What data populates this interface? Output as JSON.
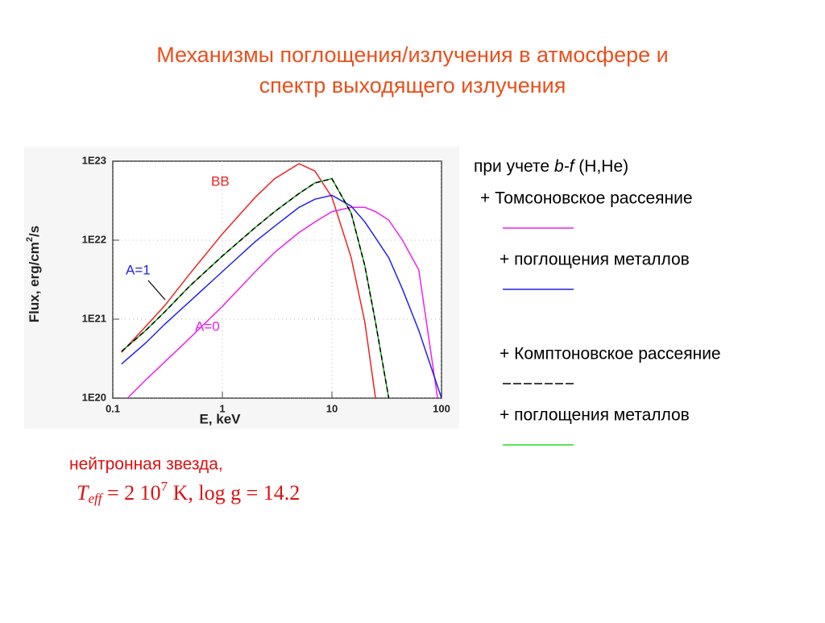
{
  "slide_title": [
    "Механизмы поглощения/излучения в атмосфере и",
    "спектр выходящего излучения"
  ],
  "chart_data": {
    "type": "line",
    "xlabel": "E, keV",
    "ylabel": {
      "main": "Flux, erg/cm",
      "sup": "2",
      "end": "/s"
    },
    "xlim": [
      0.1,
      100
    ],
    "ylim": [
      1e+20,
      1e+23
    ],
    "xticks": [
      0.1,
      1,
      10,
      100
    ],
    "yticks": [
      {
        "value": 1e+20,
        "label": "1E20"
      },
      {
        "value": 1e+21,
        "label": "1E21"
      },
      {
        "value": 1e+22,
        "label": "1E22"
      },
      {
        "value": 1e+23,
        "label": "1E23"
      }
    ],
    "xscale": "log",
    "yscale": "log",
    "grid": true,
    "series": [
      {
        "name": "BB",
        "color": "#ee2222",
        "x": [
          0.12,
          0.2,
          0.3,
          0.5,
          1,
          2,
          3,
          5,
          7,
          10,
          15,
          20,
          25
        ],
        "values": [
          3.8e+20,
          8.1e+20,
          1.5e+21,
          3.7e+21,
          1.2e+22,
          3.5e+22,
          6e+22,
          9.3e+22,
          7.5e+22,
          3.5e+22,
          6e+21,
          9.1e+20,
          1e+20
        ]
      },
      {
        "name": "A=0",
        "color": "#ee22ee",
        "x": [
          0.136,
          0.2,
          0.3,
          0.5,
          1,
          2,
          3,
          5,
          7,
          10,
          15,
          20,
          25,
          33,
          44,
          62,
          92
        ],
        "values": [
          1e+20,
          1.7e+20,
          2.9e+20,
          5.7e+20,
          1.45e+21,
          4e+21,
          7e+21,
          1.25e+22,
          1.7e+22,
          2.3e+22,
          2.6e+22,
          2.6e+22,
          2.3e+22,
          1.8e+22,
          1e+22,
          4.2e+21,
          1e+20
        ]
      },
      {
        "name": "A=1",
        "color": "#2222ee",
        "x": [
          0.12,
          0.2,
          0.3,
          0.5,
          1,
          2,
          3,
          5,
          7,
          10,
          15,
          20,
          25,
          33,
          44,
          62,
          100
        ],
        "values": [
          2.7e+20,
          5e+20,
          8.7e+20,
          1.66e+21,
          4e+21,
          9.6e+21,
          1.5e+22,
          2.6e+22,
          3.3e+22,
          3.7e+22,
          2.7e+22,
          1.7e+22,
          1.07e+22,
          6e+21,
          2.4e+21,
          7.2e+20,
          1e+20
        ]
      },
      {
        "color": "#11aa11",
        "dash_color": "#000000",
        "x": [
          0.12,
          0.2,
          0.3,
          0.5,
          1,
          2,
          3,
          5,
          7,
          10,
          15,
          20,
          25,
          33
        ],
        "values": [
          3.9e+20,
          7.2e+20,
          1.25e+21,
          2.6e+21,
          6.3e+21,
          1.45e+22,
          2.3e+22,
          3.9e+22,
          5.3e+22,
          6e+22,
          2.2e+22,
          4.7e+21,
          9.1e+20,
          1e+20
        ]
      }
    ]
  },
  "notes": {
    "header": {
      "pre": "при учете ",
      "italic": "b-f",
      "post": " (H,He)"
    },
    "items": [
      {
        "text": "+ Томсоновское рассеяние",
        "color": "#ee22ee",
        "dashed": false
      },
      {
        "text": "+ поглощения металлов",
        "color": "#2222ee",
        "dashed": false
      },
      {
        "text": "+ Комптоновское рассеяние",
        "color": "#000000",
        "dashed": true
      },
      {
        "text": "+ поглощения металлов",
        "color": "#22dd22",
        "dashed": false
      }
    ]
  },
  "caption": {
    "line1": "нейтронная звезда,",
    "T": "T",
    "sub": "eff",
    "mid": " = 2 10",
    "sup": "7",
    "end": " K, log g = 14.2"
  }
}
